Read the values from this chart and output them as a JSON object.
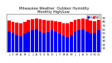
{
  "title": "Milwaukee Weather  Outdoor Humidity",
  "subtitle": "Monthly High/Low",
  "months": [
    "J",
    "F",
    "M",
    "A",
    "M",
    "J",
    "J",
    "A",
    "S",
    "O",
    "N",
    "D",
    "J",
    "F",
    "M",
    "A",
    "M",
    "J",
    "J",
    "A",
    "S",
    "O",
    "N",
    "D"
  ],
  "highs": [
    83,
    80,
    78,
    76,
    80,
    85,
    87,
    88,
    87,
    84,
    83,
    83,
    82,
    79,
    76,
    75,
    79,
    84,
    87,
    88,
    86,
    83,
    82,
    84
  ],
  "lows": [
    55,
    50,
    45,
    42,
    48,
    55,
    58,
    60,
    55,
    50,
    52,
    58,
    54,
    48,
    43,
    40,
    46,
    54,
    57,
    59,
    54,
    49,
    51,
    57
  ],
  "high_color": "#ff0000",
  "low_color": "#0000ff",
  "bg_color": "#ffffff",
  "ylim": [
    0,
    100
  ],
  "yticks": [
    10,
    20,
    30,
    40,
    50,
    60,
    70,
    80,
    90
  ],
  "bar_width": 0.42,
  "title_fontsize": 3.8,
  "tick_fontsize": 2.8,
  "legend_high": "High",
  "legend_low": "Low"
}
